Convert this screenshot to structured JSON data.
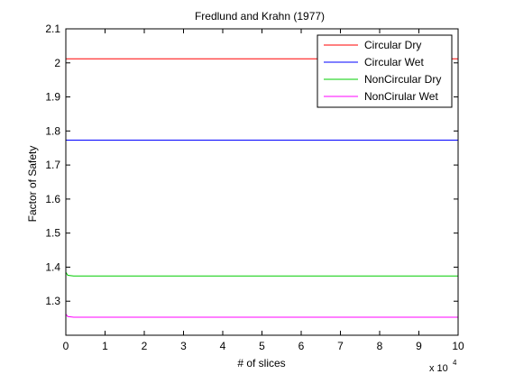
{
  "chart_data": {
    "type": "line",
    "title": "Fredlund and Krahn (1977)",
    "xlabel": "# of slices",
    "ylabel": "Factor of Safety",
    "x_multiplier_label": "x 10",
    "x_multiplier_exponent": "4",
    "xlim": [
      0,
      10
    ],
    "ylim": [
      1.2,
      2.1
    ],
    "x_ticks": [
      0,
      1,
      2,
      3,
      4,
      5,
      6,
      7,
      8,
      9,
      10
    ],
    "x_tick_labels": [
      "0",
      "1",
      "2",
      "3",
      "4",
      "5",
      "6",
      "7",
      "8",
      "9",
      "10"
    ],
    "y_ticks": [
      1.3,
      1.4,
      1.5,
      1.6,
      1.7,
      1.8,
      1.9,
      2.0,
      2.1
    ],
    "y_tick_labels": [
      "1.3",
      "1.4",
      "1.5",
      "1.6",
      "1.7",
      "1.8",
      "1.9",
      "2",
      "2.1"
    ],
    "grid": false,
    "legend_position": "top-right",
    "series": [
      {
        "name": "Circular Dry",
        "color": "#ff0000",
        "x": [
          0,
          0.05,
          0.2,
          10
        ],
        "y": [
          2.012,
          2.012,
          2.012,
          2.012
        ]
      },
      {
        "name": "Circular Wet",
        "color": "#0000ff",
        "x": [
          0,
          0.05,
          0.2,
          10
        ],
        "y": [
          1.773,
          1.773,
          1.773,
          1.773
        ]
      },
      {
        "name": "NonCircular Dry",
        "color": "#00cc00",
        "x": [
          0,
          0.05,
          0.2,
          10
        ],
        "y": [
          1.385,
          1.376,
          1.374,
          1.374
        ]
      },
      {
        "name": "NonCirular Wet",
        "color": "#ff00ff",
        "x": [
          0,
          0.05,
          0.2,
          10
        ],
        "y": [
          1.262,
          1.255,
          1.253,
          1.253
        ]
      }
    ]
  }
}
